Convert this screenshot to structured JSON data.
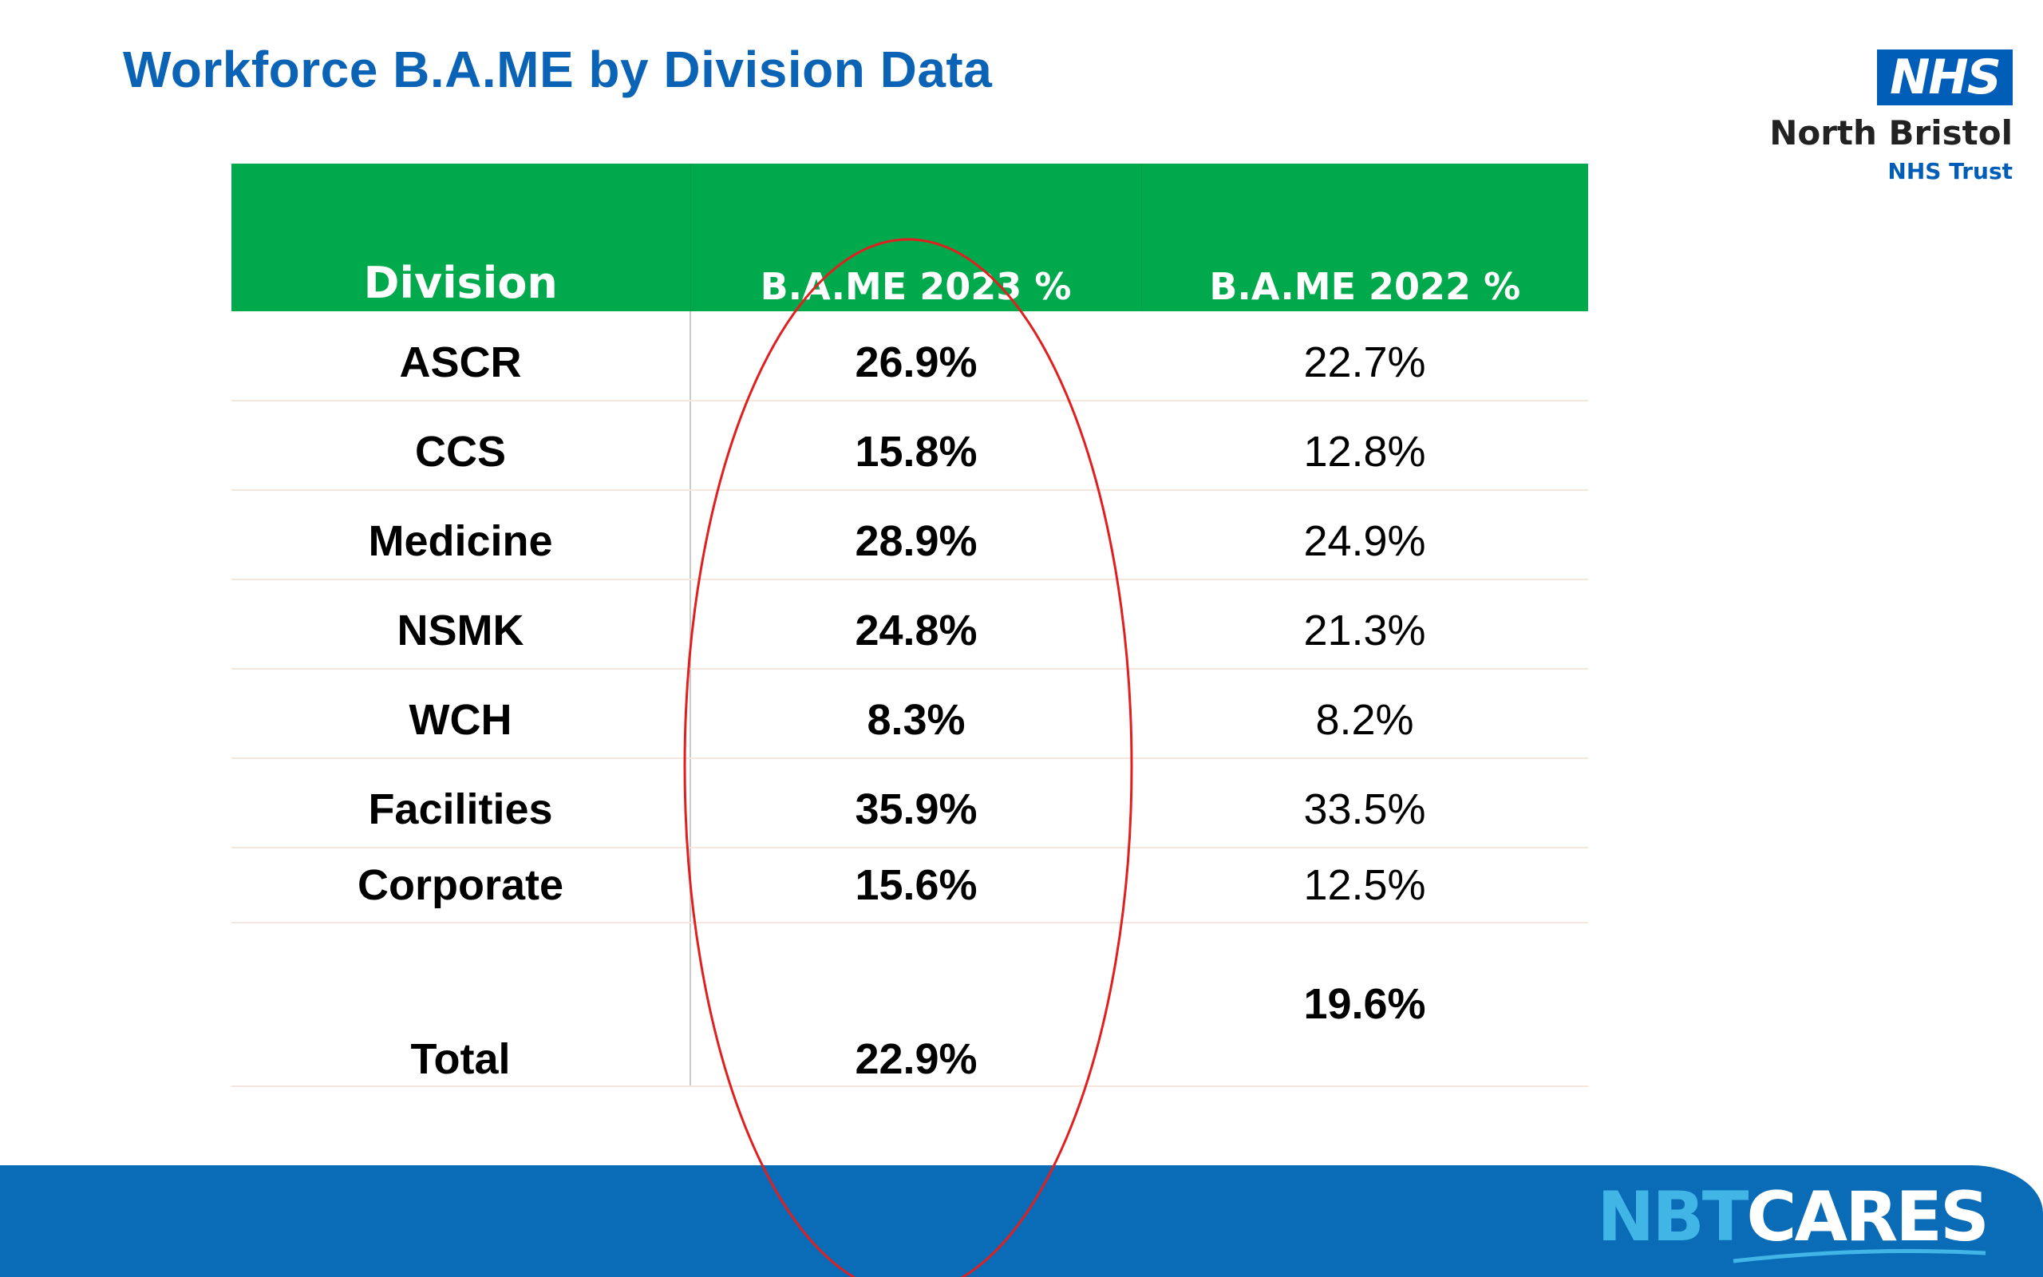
{
  "slide": {
    "title": "Workforce B.A.ME by Division Data"
  },
  "logo": {
    "nhs_mark": "NHS",
    "org_name": "North Bristol",
    "org_sub": "NHS Trust"
  },
  "table": {
    "headers": [
      "Division",
      "B.A.ME  2023 %",
      "B.A.ME 2022 %"
    ],
    "rows": [
      {
        "division": "ASCR",
        "bame_2023": "26.9%",
        "bame_2022": "22.7%"
      },
      {
        "division": "CCS",
        "bame_2023": "15.8%",
        "bame_2022": "12.8%"
      },
      {
        "division": "Medicine",
        "bame_2023": "28.9%",
        "bame_2022": "24.9%"
      },
      {
        "division": "NSMK",
        "bame_2023": "24.8%",
        "bame_2022": "21.3%"
      },
      {
        "division": "WCH",
        "bame_2023": "8.3%",
        "bame_2022": "8.2%"
      },
      {
        "division": "Facilities",
        "bame_2023": "35.9%",
        "bame_2022": "33.5%"
      },
      {
        "division": "Corporate",
        "bame_2023": "15.6%",
        "bame_2022": "12.5%"
      }
    ],
    "total": {
      "division": "Total",
      "bame_2023": "22.9%",
      "bame_2022": "19.6%"
    }
  },
  "footer": {
    "brand_prefix": "NBT",
    "brand_suffix": "CARES"
  },
  "colors": {
    "title_blue": "#0a63b5",
    "header_green": "#00aa4c",
    "footer_blue": "#0a6bb7",
    "annotation_red": "#e02020",
    "nhs_blue": "#005eb8"
  }
}
